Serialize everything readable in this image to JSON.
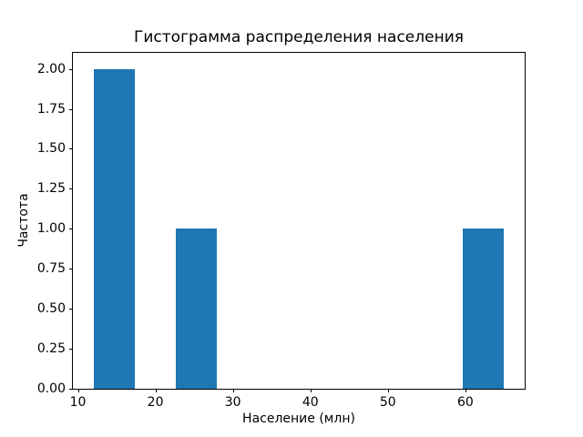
{
  "chart_data": {
    "type": "bar",
    "subtype": "histogram",
    "title": "Гистограмма распределения населения",
    "xlabel": "Население (млн)",
    "ylabel": "Частота",
    "bin_edges": [
      12.0,
      17.3,
      22.6,
      27.9,
      33.2,
      38.5,
      43.8,
      49.1,
      54.4,
      59.7,
      65.0
    ],
    "counts": [
      2,
      0,
      1,
      0,
      0,
      0,
      0,
      0,
      0,
      1
    ],
    "xticks": [
      {
        "value": 10,
        "label": "10"
      },
      {
        "value": 20,
        "label": "20"
      },
      {
        "value": 30,
        "label": "30"
      },
      {
        "value": 40,
        "label": "40"
      },
      {
        "value": 50,
        "label": "50"
      },
      {
        "value": 60,
        "label": "60"
      }
    ],
    "yticks": [
      {
        "value": 0.0,
        "label": "0.00"
      },
      {
        "value": 0.25,
        "label": "0.25"
      },
      {
        "value": 0.5,
        "label": "0.50"
      },
      {
        "value": 0.75,
        "label": "0.75"
      },
      {
        "value": 1.0,
        "label": "1.00"
      },
      {
        "value": 1.25,
        "label": "1.25"
      },
      {
        "value": 1.5,
        "label": "1.50"
      },
      {
        "value": 1.75,
        "label": "1.75"
      },
      {
        "value": 2.0,
        "label": "2.00"
      }
    ],
    "xlim": [
      9.35,
      67.65
    ],
    "ylim": [
      0,
      2.1
    ],
    "bar_color": "#1f77b4",
    "background_color": "#ffffff",
    "spine_color": "#000000",
    "grid": false,
    "legend_position": "none"
  }
}
